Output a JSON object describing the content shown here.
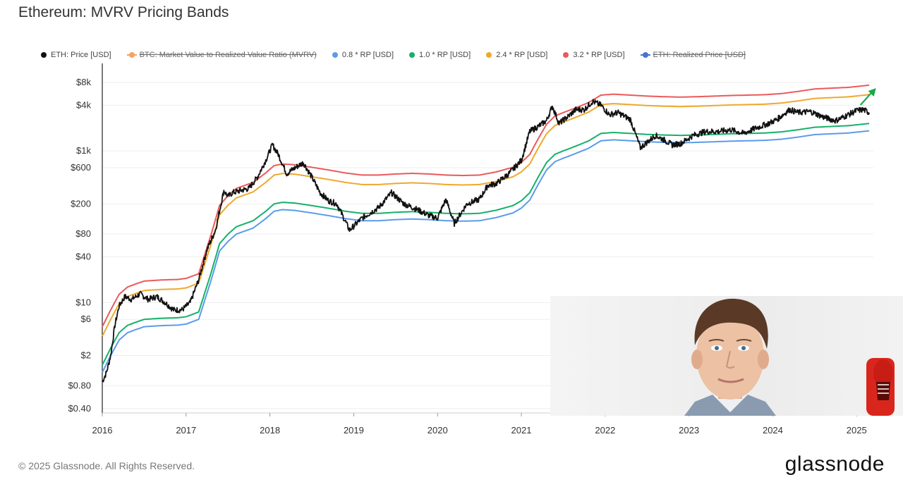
{
  "title": "Ethereum: MVRV Pricing Bands",
  "legend": [
    {
      "label": "ETH: Price [USD]",
      "color": "#111111",
      "enabled": true
    },
    {
      "label": "BTC: Market Value to Realized Value Ratio (MVRV)",
      "color": "#f4a460",
      "enabled": false
    },
    {
      "label": "0.8 * RP [USD]",
      "color": "#5b9bea",
      "enabled": true
    },
    {
      "label": "1.0 * RP [USD]",
      "color": "#16b06a",
      "enabled": true
    },
    {
      "label": "2.4 * RP [USD]",
      "color": "#f0a82c",
      "enabled": true
    },
    {
      "label": "3.2 * RP [USD]",
      "color": "#ea5a5a",
      "enabled": true
    },
    {
      "label": "ETH: Realized Price [USD]",
      "color": "#4a72d0",
      "enabled": false
    }
  ],
  "footer": {
    "copyright": "© 2025 Glassnode. All Rights Reserved.",
    "brand": "glassnode"
  },
  "chart_data": {
    "type": "line",
    "yscale": "log",
    "ylim": [
      0.35,
      12000
    ],
    "xlim": [
      2016.0,
      2025.2
    ],
    "y_ticks": [
      {
        "label": "$8k",
        "value": 8000
      },
      {
        "label": "$4k",
        "value": 4000
      },
      {
        "label": "$1k",
        "value": 1000
      },
      {
        "label": "$600",
        "value": 600
      },
      {
        "label": "$200",
        "value": 200
      },
      {
        "label": "$80",
        "value": 80
      },
      {
        "label": "$40",
        "value": 40
      },
      {
        "label": "$10",
        "value": 10
      },
      {
        "label": "$6",
        "value": 6
      },
      {
        "label": "$2",
        "value": 2
      },
      {
        "label": "$0.80",
        "value": 0.8
      },
      {
        "label": "$0.40",
        "value": 0.4
      }
    ],
    "x_ticks": [
      {
        "label": "2016",
        "value": 2016
      },
      {
        "label": "2017",
        "value": 2017
      },
      {
        "label": "2018",
        "value": 2018
      },
      {
        "label": "2019",
        "value": 2019
      },
      {
        "label": "2020",
        "value": 2020
      },
      {
        "label": "2021",
        "value": 2021
      },
      {
        "label": "2022",
        "value": 2022
      },
      {
        "label": "2023",
        "value": 2023
      },
      {
        "label": "2024",
        "value": 2024
      },
      {
        "label": "2025",
        "value": 2025
      }
    ],
    "realized_price": {
      "x": [
        2016.0,
        2016.1,
        2016.2,
        2016.3,
        2016.4,
        2016.5,
        2016.7,
        2016.9,
        2017.0,
        2017.15,
        2017.3,
        2017.4,
        2017.5,
        2017.6,
        2017.8,
        2017.95,
        2018.05,
        2018.15,
        2018.3,
        2018.5,
        2018.7,
        2018.9,
        2019.1,
        2019.3,
        2019.5,
        2019.7,
        2019.9,
        2020.1,
        2020.3,
        2020.5,
        2020.7,
        2020.9,
        2021.0,
        2021.1,
        2021.2,
        2021.3,
        2021.4,
        2021.5,
        2021.6,
        2021.8,
        2021.95,
        2022.1,
        2022.3,
        2022.5,
        2022.7,
        2022.9,
        2023.1,
        2023.3,
        2023.5,
        2023.7,
        2023.9,
        2024.1,
        2024.3,
        2024.5,
        2024.7,
        2024.9,
        2025.15
      ],
      "y": [
        1.5,
        2.5,
        4.0,
        5.0,
        5.5,
        6.0,
        6.2,
        6.3,
        6.5,
        7.5,
        25,
        60,
        80,
        100,
        120,
        160,
        200,
        210,
        205,
        190,
        175,
        160,
        150,
        150,
        155,
        158,
        155,
        150,
        148,
        150,
        165,
        190,
        220,
        280,
        450,
        700,
        900,
        1000,
        1100,
        1350,
        1700,
        1750,
        1700,
        1650,
        1620,
        1600,
        1620,
        1650,
        1680,
        1700,
        1720,
        1780,
        1900,
        2050,
        2100,
        2150,
        2300
      ]
    },
    "series": [
      {
        "name": "ETH: Price [USD]",
        "x": [
          2016.0,
          2016.05,
          2016.1,
          2016.15,
          2016.2,
          2016.27,
          2016.35,
          2016.45,
          2016.55,
          2016.65,
          2016.75,
          2016.85,
          2016.95,
          2017.05,
          2017.15,
          2017.25,
          2017.35,
          2017.45,
          2017.5,
          2017.55,
          2017.65,
          2017.75,
          2017.85,
          2017.95,
          2018.03,
          2018.1,
          2018.2,
          2018.3,
          2018.4,
          2018.5,
          2018.6,
          2018.7,
          2018.8,
          2018.95,
          2019.1,
          2019.3,
          2019.45,
          2019.6,
          2019.75,
          2019.9,
          2020.0,
          2020.1,
          2020.2,
          2020.35,
          2020.5,
          2020.6,
          2020.7,
          2020.85,
          2021.0,
          2021.1,
          2021.2,
          2021.3,
          2021.37,
          2021.45,
          2021.55,
          2021.65,
          2021.75,
          2021.85,
          2021.95,
          2022.05,
          2022.15,
          2022.3,
          2022.42,
          2022.5,
          2022.6,
          2022.7,
          2022.8,
          2022.9,
          2023.05,
          2023.2,
          2023.35,
          2023.5,
          2023.65,
          2023.8,
          2023.95,
          2024.05,
          2024.2,
          2024.3,
          2024.45,
          2024.6,
          2024.75,
          2024.9,
          2025.0,
          2025.08,
          2025.15
        ],
        "values": [
          0.9,
          1.2,
          2.0,
          5.0,
          9.0,
          12.0,
          11.0,
          13.0,
          11.0,
          12.0,
          10.0,
          8.0,
          8.0,
          10.0,
          20,
          50,
          90,
          300,
          250,
          280,
          300,
          320,
          450,
          750,
          1200,
          900,
          500,
          600,
          700,
          450,
          280,
          220,
          200,
          90,
          130,
          180,
          280,
          200,
          170,
          140,
          130,
          230,
          110,
          200,
          230,
          350,
          370,
          500,
          750,
          1800,
          2100,
          2500,
          3900,
          2300,
          2800,
          3500,
          3500,
          4500,
          4000,
          3000,
          3200,
          2600,
          1100,
          1300,
          1600,
          1400,
          1200,
          1250,
          1600,
          1800,
          1800,
          1900,
          1700,
          2000,
          2300,
          2600,
          3500,
          3200,
          3300,
          2800,
          2500,
          3000,
          3400,
          3500,
          3200
        ],
        "color": "#111111"
      },
      {
        "name": "0.8 * RP [USD]",
        "factor": 0.8,
        "color": "#5b9bea"
      },
      {
        "name": "1.0 * RP [USD]",
        "factor": 1.0,
        "color": "#16b06a"
      },
      {
        "name": "2.4 * RP [USD]",
        "factor": 2.4,
        "color": "#f0a82c"
      },
      {
        "name": "3.2 * RP [USD]",
        "factor": 3.2,
        "color": "#ea5a5a"
      }
    ],
    "grid": true,
    "legend_position": "top",
    "annotation": {
      "type": "arrow",
      "color": "#17a84b",
      "x": 2025.13,
      "y": 5200
    }
  }
}
